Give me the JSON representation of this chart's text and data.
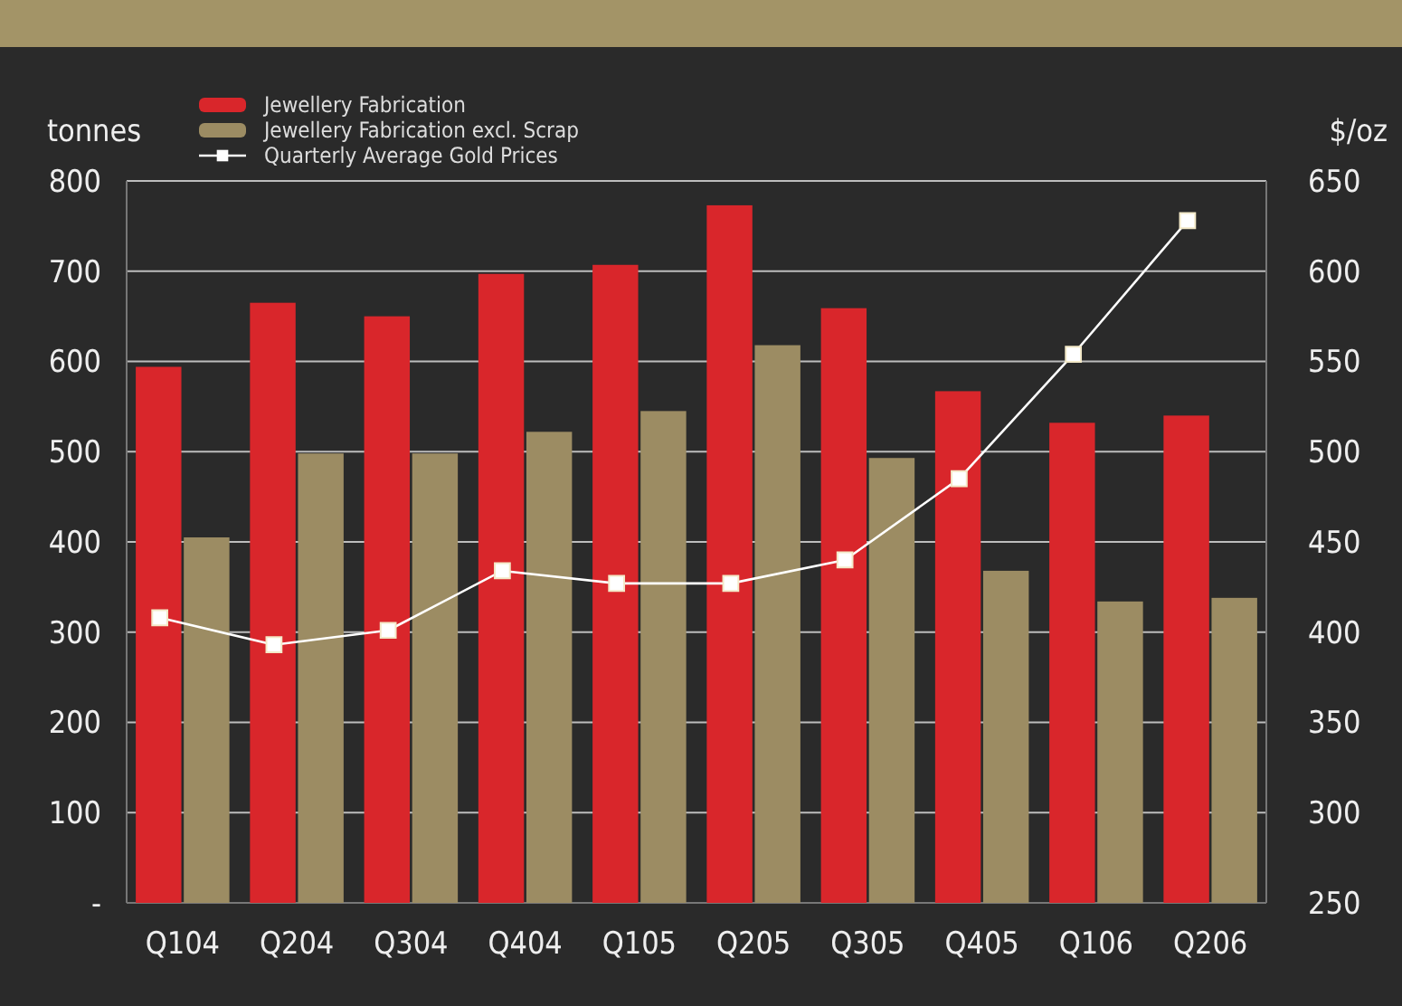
{
  "chart_data": {
    "type": "bar",
    "categories": [
      "Q104",
      "Q204",
      "Q304",
      "Q404",
      "Q105",
      "Q205",
      "Q305",
      "Q405",
      "Q106",
      "Q206"
    ],
    "ylabel": "tonnes",
    "y2label": "$/oz",
    "ylim": [
      0,
      800
    ],
    "yticks": [
      {
        "value": 0,
        "label": "-"
      },
      100,
      200,
      300,
      400,
      500,
      600,
      700,
      800
    ],
    "y2lim": [
      250,
      650
    ],
    "y2ticks": [
      250,
      300,
      350,
      400,
      450,
      500,
      550,
      600,
      650
    ],
    "grid": "y",
    "legend": "top left",
    "marker": "square",
    "series": [
      {
        "name": "Jewellery Fabrication",
        "color": "#d9262b",
        "values": [
          594,
          665,
          650,
          697,
          707,
          773,
          659,
          567,
          532,
          540
        ]
      },
      {
        "name": "Jewellery Fabrication excl. Scrap",
        "color": "#9c8c63",
        "values": [
          405,
          498,
          498,
          522,
          545,
          618,
          493,
          368,
          334,
          338
        ]
      },
      {
        "name": "Quarterly Average Gold Prices",
        "type": "line",
        "axis": "y2",
        "color": "#ffffff",
        "values": [
          408,
          393,
          401,
          434,
          427,
          427,
          440,
          485,
          554,
          628
        ]
      }
    ]
  }
}
